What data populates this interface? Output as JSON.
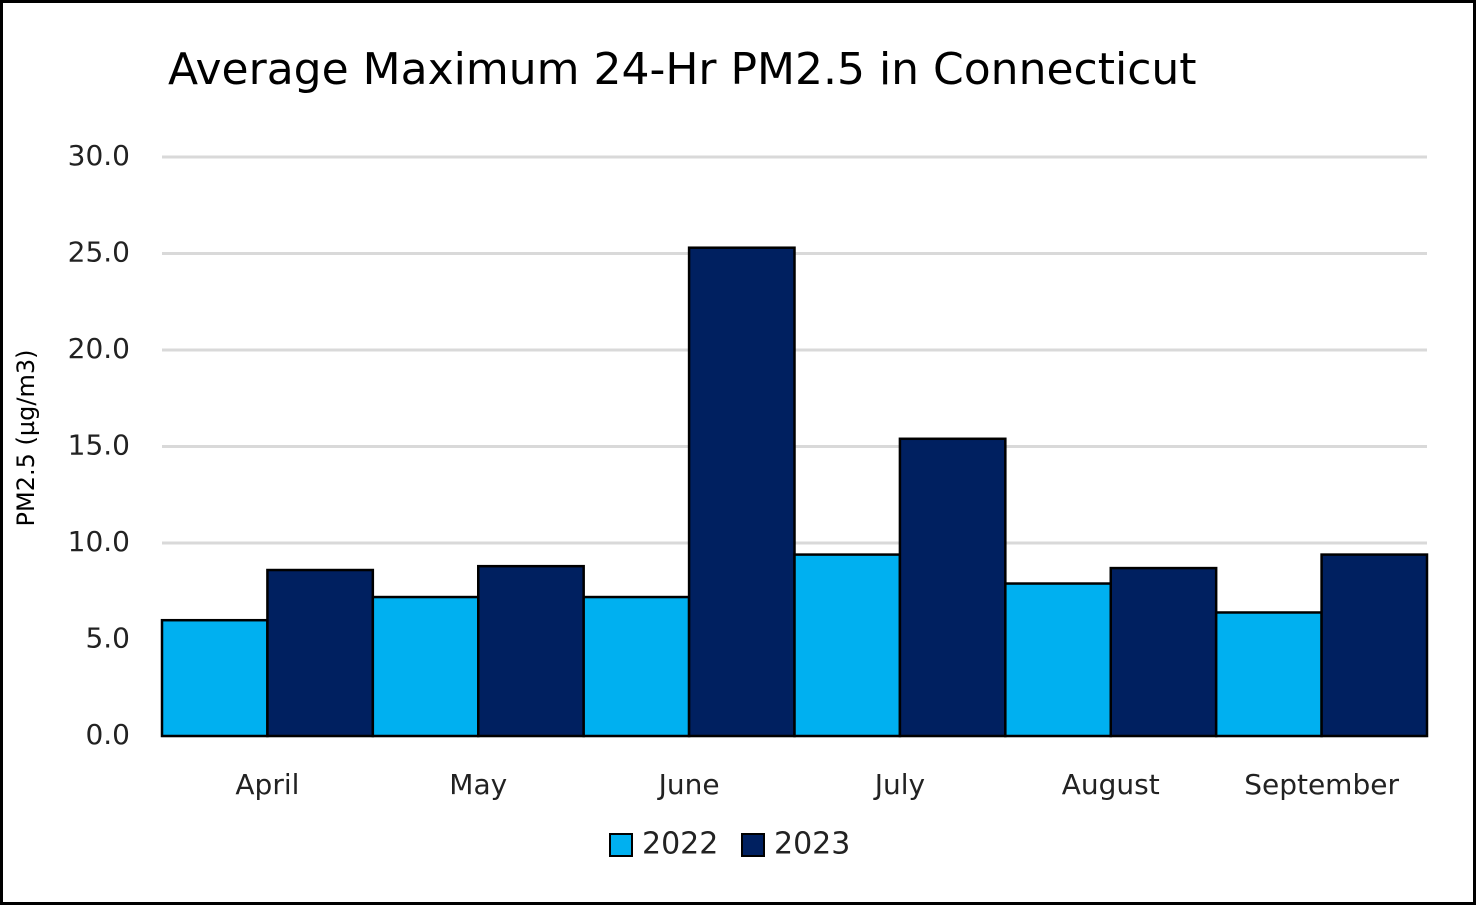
{
  "chart_data": {
    "type": "bar",
    "title": "Average Maximum 24-Hr PM2.5 in Connecticut",
    "y_label": "PM2.5 (µg/m3)",
    "categories": [
      "April",
      "May",
      "June",
      "July",
      "August",
      "September"
    ],
    "series": [
      {
        "name": "2022",
        "color": "#00b0f0",
        "values": [
          6.0,
          7.2,
          7.2,
          9.4,
          7.9,
          6.4
        ]
      },
      {
        "name": "2023",
        "color": "#002060",
        "values": [
          8.6,
          8.8,
          25.3,
          15.4,
          8.7,
          9.4
        ]
      }
    ],
    "ylim": [
      0,
      30
    ],
    "yticks": [
      {
        "value": 0,
        "label": "0.0"
      },
      {
        "value": 5,
        "label": "5.0"
      },
      {
        "value": 10,
        "label": "10.0"
      },
      {
        "value": 15,
        "label": "15.0"
      },
      {
        "value": 20,
        "label": "20.0"
      },
      {
        "value": 25,
        "label": "25.0"
      },
      {
        "value": 30,
        "label": "30.0"
      }
    ],
    "grid": true,
    "legend": "bottom"
  }
}
